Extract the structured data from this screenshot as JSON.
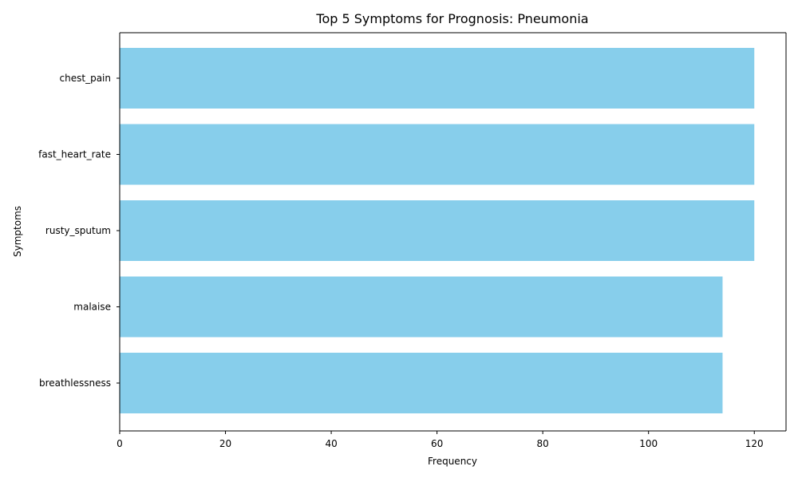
{
  "chart_data": {
    "type": "bar",
    "orientation": "horizontal",
    "title": "Top 5 Symptoms for Prognosis: Pneumonia",
    "xlabel": "Frequency",
    "ylabel": "Symptoms",
    "categories": [
      "chest_pain",
      "fast_heart_rate",
      "rusty_sputum",
      "malaise",
      "breathlessness"
    ],
    "values": [
      120,
      120,
      120,
      114,
      114
    ],
    "xlim": [
      0,
      126
    ],
    "xticks": [
      0,
      20,
      40,
      60,
      80,
      100,
      120
    ],
    "grid": false,
    "legend": "none",
    "bar_color": "#87CEEB"
  }
}
